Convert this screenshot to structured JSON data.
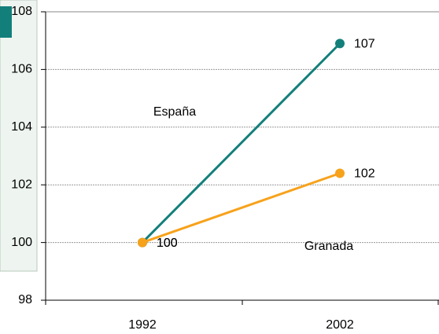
{
  "chart_data": {
    "type": "line",
    "categories": [
      "1992",
      "2002"
    ],
    "series": [
      {
        "name": "España",
        "color": "#137f7b",
        "values": [
          100,
          106.9
        ],
        "value_labels": [
          "100",
          "107"
        ]
      },
      {
        "name": "Granada",
        "color": "#f7a21b",
        "values": [
          100,
          102.4
        ],
        "value_labels": [
          "100",
          "102"
        ]
      }
    ],
    "ylim": [
      98,
      108
    ],
    "yticks": [
      98,
      100,
      102,
      104,
      106,
      108
    ],
    "grid": true
  }
}
